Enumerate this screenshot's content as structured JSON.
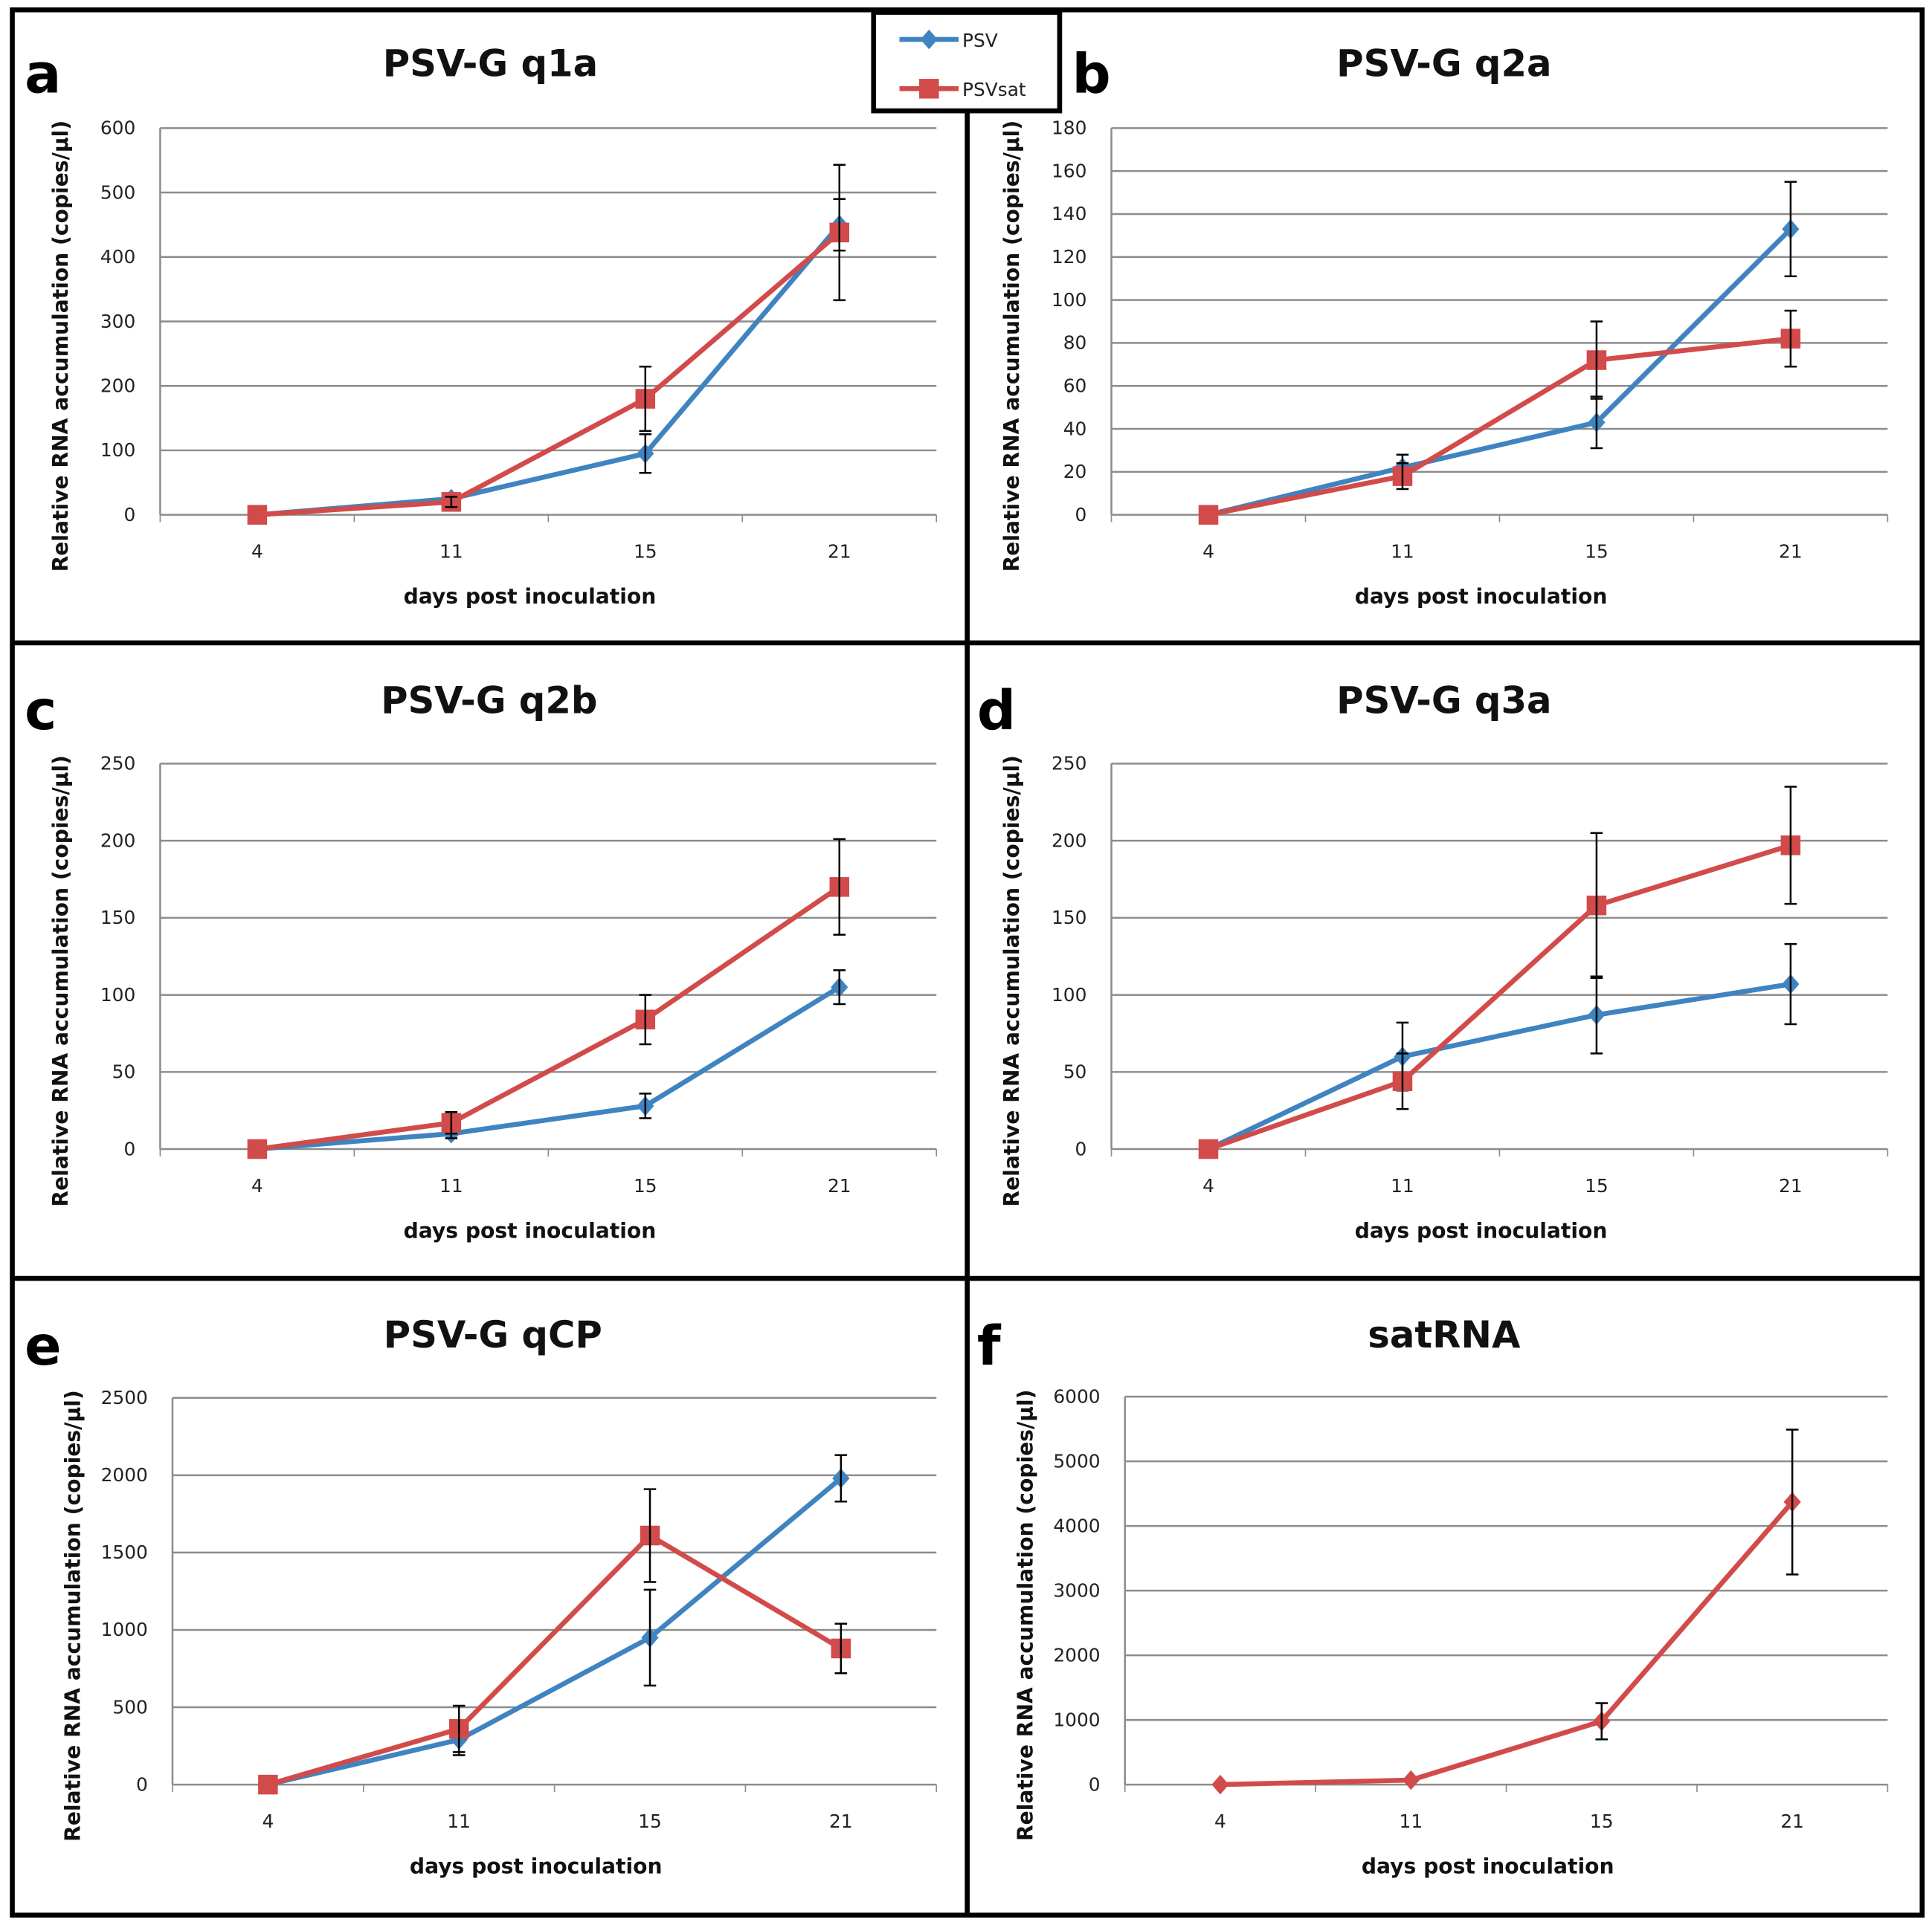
{
  "colors": {
    "psv": "#3f84c0",
    "psvsat": "#d24b4b",
    "grid": "#8c8c8c"
  },
  "legend": {
    "items": [
      {
        "name": "PSV",
        "marker": "diamond"
      },
      {
        "name": "PSVsat",
        "marker": "square"
      }
    ]
  },
  "chart_data": [
    {
      "panel": "a",
      "type": "line",
      "title": "PSV-G q1a",
      "xlabel": "days post inoculation",
      "ylabel": "Relative RNA accumulation  (copies/µl)",
      "categories": [
        "4",
        "11",
        "15",
        "21"
      ],
      "ylim": [
        0,
        600
      ],
      "yticks": [
        0,
        100,
        200,
        300,
        400,
        500,
        600
      ],
      "grid": true,
      "series": [
        {
          "name": "PSV",
          "values": [
            0,
            25,
            95,
            450
          ],
          "errors": [
            0,
            8,
            30,
            40
          ]
        },
        {
          "name": "PSVsat",
          "values": [
            0,
            20,
            180,
            438
          ],
          "errors": [
            0,
            8,
            50,
            105
          ]
        }
      ]
    },
    {
      "panel": "b",
      "type": "line",
      "title": "PSV-G q2a",
      "xlabel": "days post inoculation",
      "ylabel": "Relative RNA accumulation  (copies/µl)",
      "categories": [
        "4",
        "11",
        "15",
        "21"
      ],
      "ylim": [
        0,
        180
      ],
      "yticks": [
        0,
        20,
        40,
        60,
        80,
        100,
        120,
        140,
        160,
        180
      ],
      "grid": true,
      "series": [
        {
          "name": "PSV",
          "values": [
            0,
            22,
            43,
            133
          ],
          "errors": [
            0,
            6,
            12,
            22
          ]
        },
        {
          "name": "PSVsat",
          "values": [
            0,
            18,
            72,
            82
          ],
          "errors": [
            0,
            6,
            18,
            13
          ]
        }
      ]
    },
    {
      "panel": "c",
      "type": "line",
      "title": "PSV-G q2b",
      "xlabel": "days post inoculation",
      "ylabel": "Relative RNA accumulation  (copies/µl)",
      "categories": [
        "4",
        "11",
        "15",
        "21"
      ],
      "ylim": [
        0,
        250
      ],
      "yticks": [
        0,
        50,
        100,
        150,
        200,
        250
      ],
      "grid": true,
      "series": [
        {
          "name": "PSV",
          "values": [
            0,
            10,
            28,
            105
          ],
          "errors": [
            0,
            3,
            8,
            11
          ]
        },
        {
          "name": "PSVsat",
          "values": [
            0,
            17,
            84,
            170
          ],
          "errors": [
            0,
            7,
            16,
            31
          ]
        }
      ]
    },
    {
      "panel": "d",
      "type": "line",
      "title": "PSV-G q3a",
      "xlabel": "days post inoculation",
      "ylabel": "Relative RNA accumulation  (copies/µl)",
      "categories": [
        "4",
        "11",
        "15",
        "21"
      ],
      "ylim": [
        0,
        250
      ],
      "yticks": [
        0,
        50,
        100,
        150,
        200,
        250
      ],
      "grid": true,
      "series": [
        {
          "name": "PSV",
          "values": [
            0,
            60,
            87,
            107
          ],
          "errors": [
            0,
            22,
            25,
            26
          ]
        },
        {
          "name": "PSVsat",
          "values": [
            0,
            44,
            158,
            197
          ],
          "errors": [
            0,
            18,
            47,
            38
          ]
        }
      ]
    },
    {
      "panel": "e",
      "type": "line",
      "title": "PSV-G qCP",
      "xlabel": "days post inoculation",
      "ylabel": "Relative RNA accumulation  (copies/µl)",
      "categories": [
        "4",
        "11",
        "15",
        "21"
      ],
      "ylim": [
        0,
        2500
      ],
      "yticks": [
        0,
        500,
        1000,
        1500,
        2000,
        2500
      ],
      "grid": true,
      "series": [
        {
          "name": "PSV",
          "values": [
            0,
            290,
            950,
            1980
          ],
          "errors": [
            0,
            100,
            310,
            150
          ]
        },
        {
          "name": "PSVsat",
          "values": [
            0,
            360,
            1610,
            880
          ],
          "errors": [
            0,
            150,
            300,
            160
          ]
        }
      ]
    },
    {
      "panel": "f",
      "type": "line",
      "title": "satRNA",
      "xlabel": "days post inoculation",
      "ylabel": "Relative RNA accumulation  (copies/µl)",
      "categories": [
        "4",
        "11",
        "15",
        "21"
      ],
      "ylim": [
        0,
        6000
      ],
      "yticks": [
        0,
        1000,
        2000,
        3000,
        4000,
        5000,
        6000
      ],
      "grid": true,
      "series": [
        {
          "name": "satRNA",
          "color_key": "psvsat",
          "marker": "diamond",
          "values": [
            0,
            70,
            980,
            4370
          ],
          "errors": [
            0,
            0,
            280,
            1120
          ]
        }
      ]
    }
  ]
}
